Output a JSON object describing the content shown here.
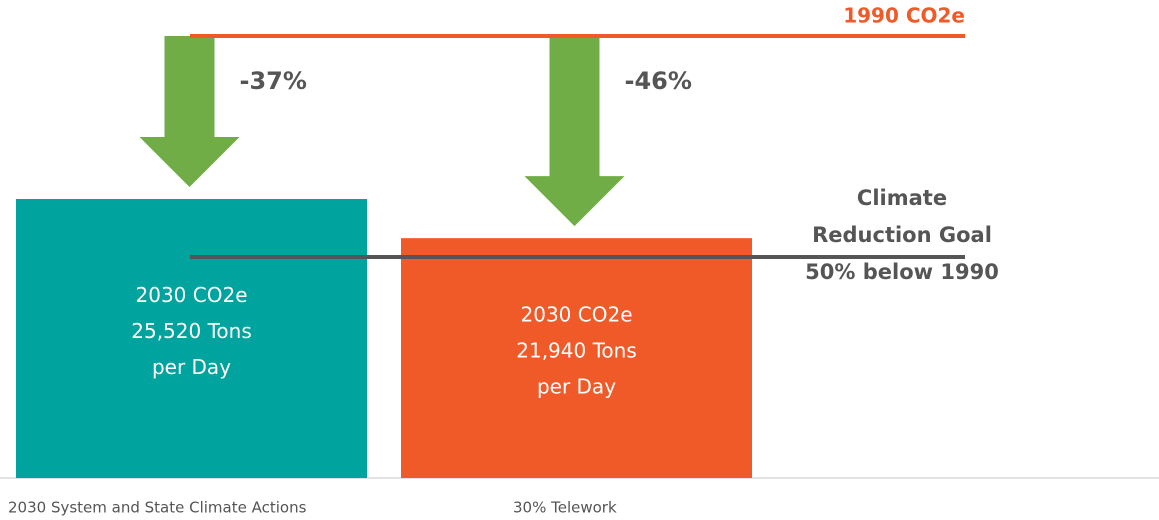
{
  "chart_data": {
    "type": "bar",
    "categories": [
      "2030 System and State Climate Actions",
      "30% Telework"
    ],
    "values": [
      25520,
      21940
    ],
    "value_labels": [
      "25,520 Tons",
      "21,940 Tons"
    ],
    "bar_label_prefix": "2030 CO2e",
    "bar_label_suffix": "per Day",
    "colors": [
      "#00a39d",
      "#f05a28"
    ],
    "reference_lines": [
      {
        "label": "1990 CO2e",
        "value": 40430,
        "color": "#f05a28"
      },
      {
        "label_lines": [
          "Climate",
          "Reduction Goal",
          "50% below 1990"
        ],
        "value": 20215,
        "color": "#555555"
      }
    ],
    "annotations": [
      {
        "text": "-37%",
        "category": 0
      },
      {
        "text": "-46%",
        "category": 1
      }
    ],
    "arrow_color": "#70ad47"
  }
}
